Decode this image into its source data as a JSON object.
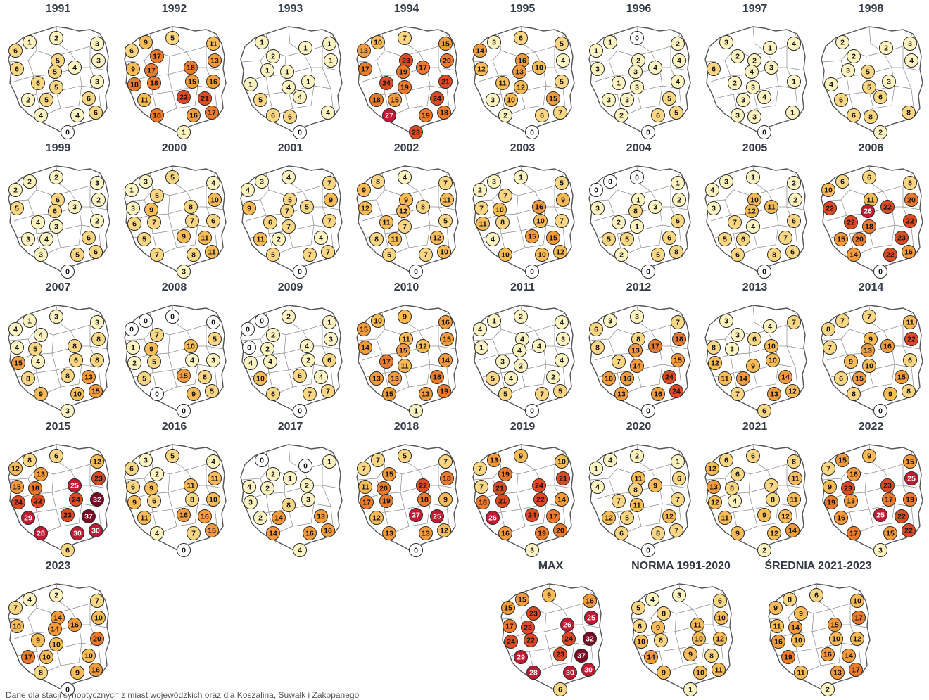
{
  "footnote": "Dane dla stacji synoptycznych z miast wojewódzkich oraz dla Koszalina, Suwałk i Zakopanego",
  "color_scale": [
    {
      "min": 0,
      "max": 0,
      "color": "#ffffff"
    },
    {
      "min": 1,
      "max": 4,
      "color": "#fdf3c0"
    },
    {
      "min": 5,
      "max": 8,
      "color": "#fbd784"
    },
    {
      "min": 9,
      "max": 12,
      "color": "#f9bc56"
    },
    {
      "min": 13,
      "max": 16,
      "color": "#f59b3c"
    },
    {
      "min": 17,
      "max": 20,
      "color": "#ee7a2c"
    },
    {
      "min": 21,
      "max": 24,
      "color": "#df4a22"
    },
    {
      "min": 25,
      "max": 30,
      "color": "#c21a32"
    },
    {
      "min": 31,
      "max": 40,
      "color": "#7b0a22"
    }
  ],
  "panels": [
    {
      "title": "1991",
      "values": [
        1,
        2,
        3,
        6,
        5,
        3,
        6,
        5,
        4,
        6,
        5,
        3,
        2,
        5,
        6,
        4,
        4,
        6,
        0
      ]
    },
    {
      "title": "1992",
      "values": [
        9,
        5,
        11,
        6,
        17,
        13,
        9,
        17,
        18,
        18,
        18,
        15,
        16,
        11,
        22,
        21,
        18,
        16,
        17,
        1
      ]
    },
    {
      "title": "1993",
      "values": [
        1,
        1,
        1,
        2,
        1,
        1,
        1,
        1,
        4,
        1,
        5,
        4,
        6,
        6,
        4,
        0
      ]
    },
    {
      "title": "1994",
      "values": [
        10,
        7,
        15,
        13,
        23,
        20,
        17,
        19,
        17,
        24,
        19,
        21,
        18,
        15,
        24,
        27,
        19,
        18,
        23
      ]
    },
    {
      "title": "1995",
      "values": [
        3,
        6,
        5,
        14,
        16,
        4,
        12,
        13,
        10,
        11,
        12,
        5,
        3,
        10,
        15,
        2,
        6,
        7,
        0
      ]
    },
    {
      "title": "1996",
      "values": [
        1,
        0,
        2,
        1,
        2,
        4,
        3,
        3,
        4,
        1,
        3,
        4,
        3,
        3,
        5,
        2,
        6,
        5,
        0
      ]
    },
    {
      "title": "1997",
      "values": [
        3,
        1,
        4,
        2,
        2,
        6,
        4,
        3,
        2,
        3,
        1,
        3,
        4,
        3,
        3,
        1,
        0
      ]
    },
    {
      "title": "1998",
      "values": [
        2,
        2,
        3,
        2,
        4,
        3,
        5,
        4,
        5,
        3,
        6,
        6,
        6,
        8,
        8,
        2
      ]
    },
    {
      "title": "1999",
      "values": [
        2,
        2,
        3,
        2,
        6,
        2,
        5,
        6,
        3,
        4,
        3,
        2,
        3,
        4,
        6,
        3,
        5,
        6,
        0
      ]
    },
    {
      "title": "2000",
      "values": [
        3,
        5,
        4,
        1,
        5,
        10,
        3,
        9,
        8,
        6,
        7,
        7,
        6,
        5,
        9,
        11,
        7,
        8,
        11,
        3
      ]
    },
    {
      "title": "2001",
      "values": [
        3,
        4,
        7,
        4,
        5,
        9,
        9,
        7,
        5,
        6,
        7,
        7,
        11,
        2,
        4,
        5,
        7,
        7,
        0
      ]
    },
    {
      "title": "2002",
      "values": [
        8,
        4,
        7,
        9,
        9,
        11,
        12,
        12,
        8,
        11,
        7,
        5,
        8,
        11,
        12,
        5,
        7,
        10,
        0
      ]
    },
    {
      "title": "2003",
      "values": [
        3,
        1,
        5,
        2,
        7,
        9,
        7,
        10,
        16,
        11,
        8,
        10,
        7,
        4,
        15,
        15,
        10,
        10,
        12,
        0
      ]
    },
    {
      "title": "2004",
      "values": [
        0,
        0,
        1,
        0,
        1,
        2,
        3,
        8,
        3,
        2,
        1,
        6,
        5,
        5,
        6,
        2,
        5,
        8,
        0
      ]
    },
    {
      "title": "2005",
      "values": [
        3,
        1,
        2,
        4,
        10,
        2,
        3,
        12,
        11,
        7,
        4,
        6,
        5,
        6,
        7,
        6,
        8,
        6,
        0
      ]
    },
    {
      "title": "2006",
      "values": [
        6,
        6,
        8,
        10,
        11,
        20,
        22,
        26,
        22,
        22,
        18,
        22,
        15,
        20,
        23,
        14,
        22,
        16,
        0
      ]
    },
    {
      "title": "2007",
      "values": [
        1,
        3,
        3,
        4,
        4,
        8,
        4,
        5,
        8,
        15,
        4,
        6,
        8,
        8,
        8,
        13,
        9,
        10,
        15,
        3
      ]
    },
    {
      "title": "2008",
      "values": [
        0,
        0,
        0,
        0,
        7,
        5,
        1,
        9,
        10,
        2,
        5,
        4,
        3,
        5,
        15,
        8,
        0,
        9,
        5,
        0
      ]
    },
    {
      "title": "2009",
      "values": [
        0,
        2,
        1,
        0,
        2,
        3,
        0,
        2,
        4,
        4,
        4,
        2,
        6,
        10,
        6,
        4,
        6,
        7,
        7,
        0
      ]
    },
    {
      "title": "2010",
      "values": [
        10,
        9,
        16,
        15,
        11,
        15,
        14,
        15,
        12,
        17,
        11,
        14,
        13,
        13,
        18,
        15,
        13,
        19,
        1
      ]
    },
    {
      "title": "2011",
      "values": [
        1,
        2,
        4,
        4,
        4,
        3,
        1,
        4,
        4,
        3,
        2,
        4,
        5,
        4,
        2,
        5,
        7,
        5,
        0
      ]
    },
    {
      "title": "2012",
      "values": [
        3,
        3,
        7,
        6,
        8,
        18,
        8,
        13,
        17,
        7,
        14,
        15,
        16,
        16,
        24,
        13,
        16,
        24,
        0
      ]
    },
    {
      "title": "2013",
      "values": [
        3,
        4,
        7,
        3,
        6,
        8,
        3,
        10,
        12,
        9,
        10,
        11,
        14,
        14,
        7,
        13,
        12,
        6
      ]
    },
    {
      "title": "2014",
      "values": [
        7,
        7,
        11,
        8,
        9,
        22,
        7,
        13,
        16,
        9,
        10,
        6,
        6,
        15,
        15,
        8,
        9,
        8,
        0
      ]
    },
    {
      "title": "2015",
      "values": [
        8,
        6,
        12,
        12,
        13,
        23,
        15,
        18,
        25,
        24,
        22,
        24,
        32,
        29,
        23,
        37,
        28,
        30,
        30,
        6
      ]
    },
    {
      "title": "2016",
      "values": [
        3,
        5,
        4,
        6,
        2,
        11,
        6,
        9,
        11,
        9,
        6,
        8,
        10,
        11,
        16,
        16,
        4,
        7,
        15,
        0
      ]
    },
    {
      "title": "2017",
      "values": [
        0,
        0,
        1,
        2,
        1,
        4,
        2,
        2,
        3,
        8,
        3,
        2,
        14,
        13,
        14,
        16,
        16,
        4
      ]
    },
    {
      "title": "2018",
      "values": [
        7,
        5,
        7,
        7,
        15,
        18,
        11,
        20,
        22,
        17,
        19,
        18,
        9,
        12,
        27,
        25,
        13,
        13,
        12,
        0
      ]
    },
    {
      "title": "2019",
      "values": [
        13,
        9,
        10,
        7,
        19,
        21,
        7,
        21,
        24,
        18,
        21,
        22,
        14,
        26,
        24,
        17,
        16,
        19,
        20,
        3
      ]
    },
    {
      "title": "2020",
      "values": [
        4,
        2,
        1,
        1,
        11,
        6,
        4,
        8,
        9,
        7,
        11,
        7,
        12,
        5,
        12,
        6,
        8,
        7,
        0
      ]
    },
    {
      "title": "2021",
      "values": [
        6,
        6,
        8,
        12,
        6,
        11,
        13,
        8,
        7,
        12,
        4,
        8,
        11,
        11,
        9,
        12,
        9,
        12,
        14,
        2
      ]
    },
    {
      "title": "2022",
      "values": [
        15,
        9,
        15,
        7,
        16,
        25,
        9,
        23,
        23,
        19,
        13,
        17,
        19,
        16,
        25,
        22,
        17,
        15,
        22,
        3
      ]
    },
    {
      "title": "2023",
      "values": [
        4,
        2,
        7,
        7,
        14,
        10,
        10,
        14,
        16,
        9,
        10,
        20,
        17,
        10,
        10,
        8,
        9,
        16,
        0
      ]
    },
    {
      "title": "MAX",
      "values": [
        15,
        9,
        16,
        15,
        23,
        25,
        17,
        23,
        26,
        24,
        22,
        24,
        32,
        29,
        23,
        37,
        28,
        30,
        30,
        6
      ]
    },
    {
      "title": "NORMA 1991-2020",
      "values": [
        4,
        3,
        6,
        5,
        8,
        10,
        6,
        9,
        11,
        10,
        8,
        10,
        12,
        14,
        9,
        8,
        9,
        10,
        11,
        1
      ]
    },
    {
      "title": "ŚREDNIA 2021-2023",
      "values": [
        8,
        6,
        10,
        9,
        9,
        17,
        11,
        14,
        15,
        16,
        10,
        10,
        12,
        19,
        16,
        14,
        11,
        13,
        17,
        2
      ]
    }
  ]
}
